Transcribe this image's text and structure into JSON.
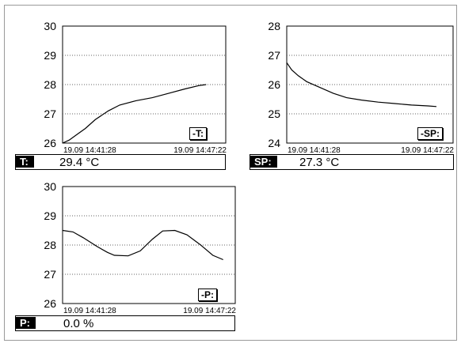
{
  "panels": [
    {
      "id": "T",
      "legend": "-T:",
      "tag": "T:",
      "value": "29.4 °C",
      "x_labels": [
        "19.09 14:41:28",
        "19.09 14:47:22"
      ],
      "y_ticks": [
        "30",
        "29",
        "28",
        "27",
        "26"
      ],
      "ylim": [
        26,
        30
      ],
      "series": [
        [
          0,
          26.0
        ],
        [
          0.04,
          26.1
        ],
        [
          0.09,
          26.3
        ],
        [
          0.14,
          26.5
        ],
        [
          0.2,
          26.8
        ],
        [
          0.28,
          27.1
        ],
        [
          0.35,
          27.3
        ],
        [
          0.45,
          27.45
        ],
        [
          0.55,
          27.55
        ],
        [
          0.65,
          27.7
        ],
        [
          0.75,
          27.85
        ],
        [
          0.84,
          27.97
        ],
        [
          0.88,
          28.0
        ]
      ]
    },
    {
      "id": "SP",
      "legend": "-SP:",
      "tag": "SP:",
      "value": "27.3 °C",
      "x_labels": [
        "19.09 14:41:28",
        "19.09 14:47:22"
      ],
      "y_ticks": [
        "28",
        "27",
        "26",
        "25",
        "24"
      ],
      "ylim": [
        24,
        28
      ],
      "series": [
        [
          0,
          26.75
        ],
        [
          0.03,
          26.5
        ],
        [
          0.07,
          26.3
        ],
        [
          0.12,
          26.1
        ],
        [
          0.2,
          25.9
        ],
        [
          0.28,
          25.7
        ],
        [
          0.36,
          25.55
        ],
        [
          0.45,
          25.47
        ],
        [
          0.55,
          25.4
        ],
        [
          0.65,
          25.35
        ],
        [
          0.75,
          25.3
        ],
        [
          0.85,
          25.27
        ],
        [
          0.9,
          25.25
        ]
      ]
    },
    {
      "id": "P",
      "legend": "-P:",
      "tag": "P:",
      "value": "0.0 %",
      "x_labels": [
        "19.09 14:41:28",
        "19.09 14:47:22"
      ],
      "y_ticks": [
        "30",
        "29",
        "28",
        "27",
        "26"
      ],
      "ylim": [
        26,
        30
      ],
      "series": [
        [
          0,
          28.5
        ],
        [
          0.06,
          28.45
        ],
        [
          0.12,
          28.25
        ],
        [
          0.2,
          27.95
        ],
        [
          0.26,
          27.75
        ],
        [
          0.3,
          27.65
        ],
        [
          0.38,
          27.63
        ],
        [
          0.45,
          27.8
        ],
        [
          0.52,
          28.2
        ],
        [
          0.58,
          28.48
        ],
        [
          0.65,
          28.5
        ],
        [
          0.72,
          28.35
        ],
        [
          0.8,
          28.0
        ],
        [
          0.87,
          27.65
        ],
        [
          0.93,
          27.5
        ]
      ]
    }
  ]
}
